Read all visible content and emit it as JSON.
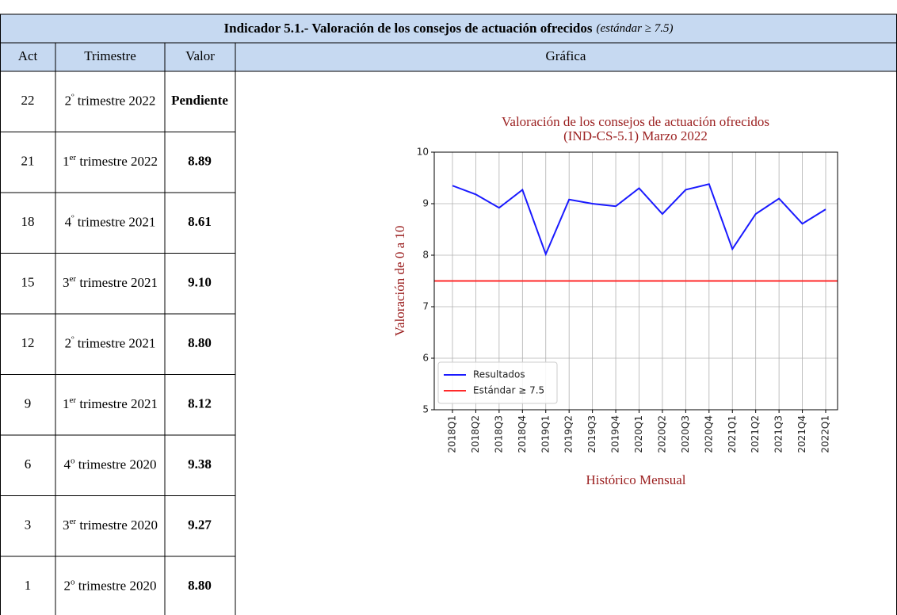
{
  "header": {
    "title": "Indicador 5.1.- Valoración de los consejos de actuación ofrecidos",
    "note": "(estándar ≥ 7.5)"
  },
  "table": {
    "columns": [
      "Act",
      "Trimestre",
      "Valor",
      "Gráfica"
    ],
    "rows": [
      {
        "act": "22",
        "num": "2",
        "sup": "º",
        "text": " trimestre 2022",
        "valor": "Pendiente"
      },
      {
        "act": "21",
        "num": "1",
        "sup": "er",
        "text": " trimestre 2022",
        "valor": "8.89"
      },
      {
        "act": "18",
        "num": "4",
        "sup": "º",
        "text": " trimestre 2021",
        "valor": "8.61"
      },
      {
        "act": "15",
        "num": "3",
        "sup": "er",
        "text": " trimestre 2021",
        "valor": "9.10"
      },
      {
        "act": "12",
        "num": "2",
        "sup": "º",
        "text": " trimestre 2021",
        "valor": "8.80"
      },
      {
        "act": "9",
        "num": "1",
        "sup": "er",
        "text": " trimestre 2021",
        "valor": "8.12"
      },
      {
        "act": "6",
        "num": "4",
        "sup": "o",
        "text": " trimestre 2020",
        "valor": "9.38"
      },
      {
        "act": "3",
        "num": "3",
        "sup": "er",
        "text": " trimestre 2020",
        "valor": "9.27"
      },
      {
        "act": "1",
        "num": "2",
        "sup": "o",
        "text": " trimestre 2020",
        "valor": "8.80"
      }
    ]
  },
  "chart_data": {
    "type": "line",
    "title": [
      "Valoración de los consejos de actuación ofrecidos",
      "(IND-CS-5.1) Marzo 2022"
    ],
    "x_label": "Histórico Mensual",
    "y_label": "Valoración de 0 a 10",
    "categories": [
      "2018Q1",
      "2018Q2",
      "2018Q3",
      "2018Q4",
      "2019Q1",
      "2019Q2",
      "2019Q3",
      "2019Q4",
      "2020Q1",
      "2020Q2",
      "2020Q3",
      "2020Q4",
      "2021Q1",
      "2021Q2",
      "2021Q3",
      "2021Q4",
      "2022Q1"
    ],
    "series": [
      {
        "name": "Resultados",
        "color": "#1a1aff",
        "values": [
          9.35,
          9.18,
          8.92,
          9.27,
          8.02,
          9.08,
          9.0,
          8.95,
          9.3,
          8.8,
          9.27,
          9.38,
          8.12,
          8.8,
          9.1,
          8.61,
          8.89
        ]
      }
    ],
    "reference_line": {
      "name": "Estándar ≥ 7.5",
      "value": 7.5,
      "color": "#ff2a2a"
    },
    "ylim": [
      5,
      10
    ],
    "yticks": [
      5,
      6,
      7,
      8,
      9,
      10
    ],
    "grid": true,
    "legend": "lower left"
  }
}
